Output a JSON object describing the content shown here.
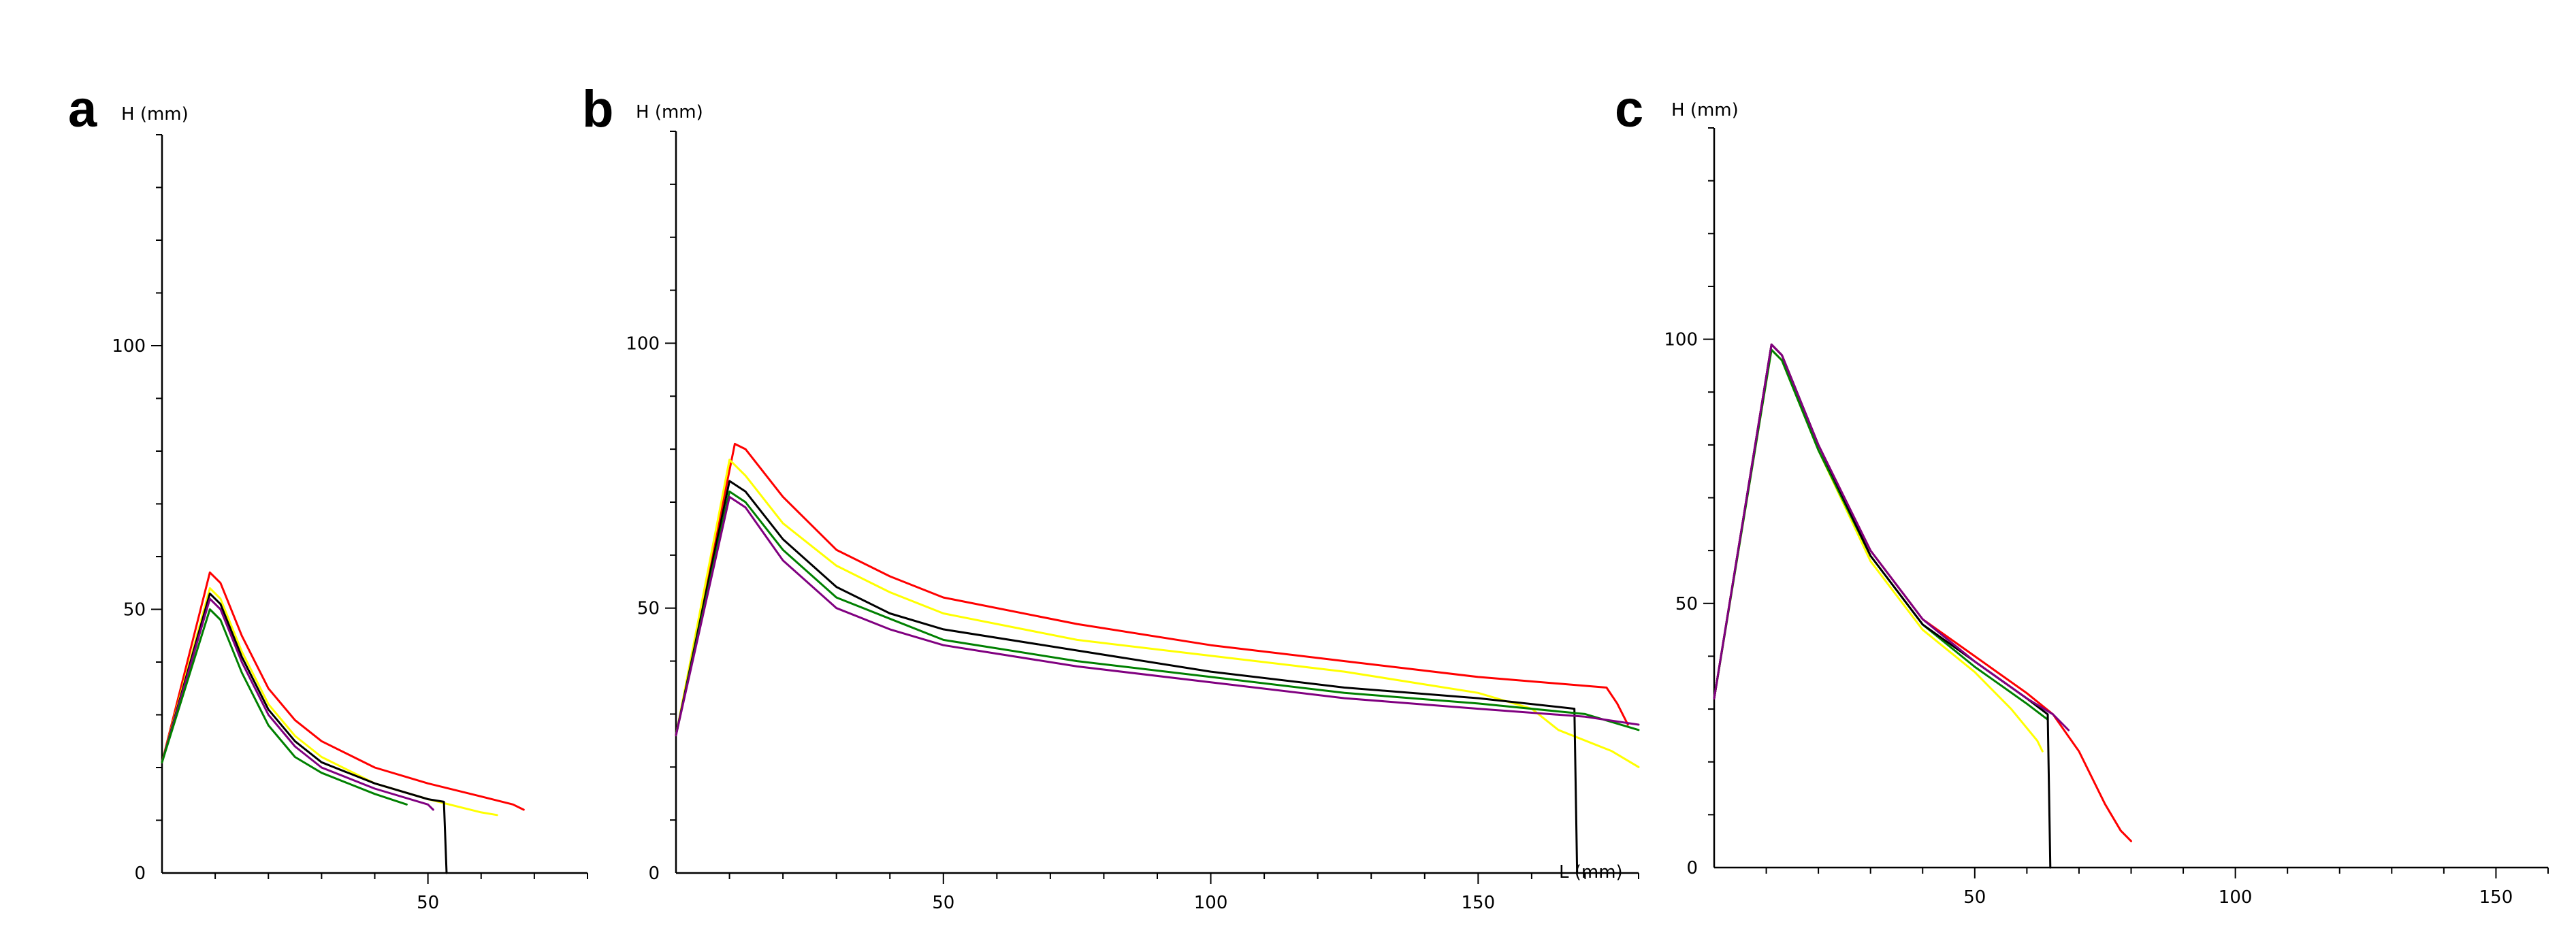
{
  "chart_data": [
    {
      "type": "line",
      "panel_label": "a",
      "ylabel": "H (mm)",
      "xlabel": "",
      "xlim": [
        0,
        80
      ],
      "ylim": [
        0,
        140
      ],
      "x_ticks": [
        50
      ],
      "y_ticks": [
        0,
        50,
        100
      ],
      "x_tick_labels": [
        "50"
      ],
      "y_tick_labels": [
        "0",
        "50",
        "100"
      ],
      "series": [
        {
          "color": "#ff0000",
          "points": [
            [
              0,
              21
            ],
            [
              9,
              57
            ],
            [
              11,
              55
            ],
            [
              15,
              45
            ],
            [
              20,
              35
            ],
            [
              25,
              29
            ],
            [
              30,
              25
            ],
            [
              40,
              20
            ],
            [
              50,
              17
            ],
            [
              60,
              14.5
            ],
            [
              66,
              13
            ],
            [
              68,
              12
            ]
          ]
        },
        {
          "color": "#ffff00",
          "points": [
            [
              0,
              21
            ],
            [
              9,
              54
            ],
            [
              11,
              52
            ],
            [
              15,
              42
            ],
            [
              20,
              32
            ],
            [
              25,
              26
            ],
            [
              30,
              22
            ],
            [
              40,
              17
            ],
            [
              50,
              14
            ],
            [
              60,
              11.5
            ],
            [
              63,
              11
            ]
          ]
        },
        {
          "color": "#000000",
          "points": [
            [
              0,
              21
            ],
            [
              9,
              53
            ],
            [
              11,
              51
            ],
            [
              15,
              41
            ],
            [
              20,
              31
            ],
            [
              25,
              25
            ],
            [
              30,
              21
            ],
            [
              40,
              17
            ],
            [
              50,
              14
            ],
            [
              53,
              13.5
            ],
            [
              53.5,
              0
            ]
          ]
        },
        {
          "color": "#800080",
          "points": [
            [
              0,
              21
            ],
            [
              9,
              52
            ],
            [
              11,
              50
            ],
            [
              15,
              40
            ],
            [
              20,
              30
            ],
            [
              25,
              24
            ],
            [
              30,
              20
            ],
            [
              40,
              16
            ],
            [
              50,
              13
            ],
            [
              51,
              12
            ]
          ]
        },
        {
          "color": "#008000",
          "points": [
            [
              0,
              21
            ],
            [
              9,
              50
            ],
            [
              11,
              48
            ],
            [
              15,
              38
            ],
            [
              20,
              28
            ],
            [
              25,
              22
            ],
            [
              30,
              19
            ],
            [
              40,
              15
            ],
            [
              46,
              13
            ]
          ]
        }
      ]
    },
    {
      "type": "line",
      "panel_label": "b",
      "ylabel": "H (mm)",
      "xlabel": "L (mm)",
      "xlim": [
        0,
        180
      ],
      "ylim": [
        0,
        140
      ],
      "x_ticks": [
        50,
        100,
        150
      ],
      "y_ticks": [
        0,
        50,
        100
      ],
      "x_tick_labels": [
        "50",
        "100",
        "150"
      ],
      "y_tick_labels": [
        "0",
        "50",
        "100"
      ],
      "series": [
        {
          "color": "#ff0000",
          "points": [
            [
              0,
              26
            ],
            [
              11,
              81
            ],
            [
              13,
              80
            ],
            [
              20,
              71
            ],
            [
              30,
              61
            ],
            [
              40,
              56
            ],
            [
              50,
              52
            ],
            [
              75,
              47
            ],
            [
              100,
              43
            ],
            [
              125,
              40
            ],
            [
              150,
              37
            ],
            [
              174,
              35
            ],
            [
              176,
              32
            ],
            [
              178,
              28
            ]
          ]
        },
        {
          "color": "#ffff00",
          "points": [
            [
              0,
              26
            ],
            [
              10,
              78
            ],
            [
              13,
              75
            ],
            [
              20,
              66
            ],
            [
              30,
              58
            ],
            [
              40,
              53
            ],
            [
              50,
              49
            ],
            [
              75,
              44
            ],
            [
              100,
              41
            ],
            [
              125,
              38
            ],
            [
              150,
              34
            ],
            [
              160,
              31
            ],
            [
              165,
              27
            ],
            [
              175,
              23
            ],
            [
              180,
              20
            ]
          ]
        },
        {
          "color": "#000000",
          "points": [
            [
              0,
              26
            ],
            [
              10,
              74
            ],
            [
              13,
              72
            ],
            [
              20,
              63
            ],
            [
              30,
              54
            ],
            [
              40,
              49
            ],
            [
              50,
              46
            ],
            [
              75,
              42
            ],
            [
              100,
              38
            ],
            [
              125,
              35
            ],
            [
              150,
              33
            ],
            [
              168,
              31
            ],
            [
              168.5,
              0
            ]
          ]
        },
        {
          "color": "#008000",
          "points": [
            [
              0,
              26
            ],
            [
              10,
              72
            ],
            [
              13,
              70
            ],
            [
              20,
              61
            ],
            [
              30,
              52
            ],
            [
              40,
              48
            ],
            [
              50,
              44
            ],
            [
              75,
              40
            ],
            [
              100,
              37
            ],
            [
              125,
              34
            ],
            [
              150,
              32
            ],
            [
              170,
              30
            ],
            [
              180,
              27
            ]
          ]
        },
        {
          "color": "#800080",
          "points": [
            [
              0,
              26
            ],
            [
              10,
              71
            ],
            [
              13,
              69
            ],
            [
              20,
              59
            ],
            [
              30,
              50
            ],
            [
              40,
              46
            ],
            [
              50,
              43
            ],
            [
              75,
              39
            ],
            [
              100,
              36
            ],
            [
              125,
              33
            ],
            [
              150,
              31
            ],
            [
              170,
              29.5
            ],
            [
              180,
              28
            ]
          ]
        }
      ]
    },
    {
      "type": "line",
      "panel_label": "c",
      "ylabel": "H (mm)",
      "xlabel": "",
      "xlim": [
        0,
        160
      ],
      "ylim": [
        0,
        140
      ],
      "x_ticks": [
        50,
        100,
        150
      ],
      "y_ticks": [
        0,
        50,
        100
      ],
      "x_tick_labels": [
        "50",
        "100",
        "150"
      ],
      "y_tick_labels": [
        "0",
        "50",
        "100"
      ],
      "series": [
        {
          "color": "#ff0000",
          "points": [
            [
              0,
              32
            ],
            [
              11,
              99
            ],
            [
              13,
              97
            ],
            [
              20,
              80
            ],
            [
              30,
              60
            ],
            [
              40,
              47
            ],
            [
              50,
              40
            ],
            [
              60,
              33
            ],
            [
              65,
              29
            ],
            [
              70,
              22
            ],
            [
              75,
              12
            ],
            [
              78,
              7
            ],
            [
              80,
              5
            ]
          ]
        },
        {
          "color": "#ffff00",
          "points": [
            [
              0,
              32
            ],
            [
              11,
              98
            ],
            [
              13,
              96
            ],
            [
              20,
              79
            ],
            [
              30,
              58
            ],
            [
              40,
              45
            ],
            [
              50,
              37
            ],
            [
              57,
              30
            ],
            [
              62,
              24
            ],
            [
              63,
              22
            ]
          ]
        },
        {
          "color": "#008000",
          "points": [
            [
              0,
              32
            ],
            [
              11,
              98
            ],
            [
              13,
              96
            ],
            [
              20,
              79
            ],
            [
              30,
              59
            ],
            [
              40,
              46
            ],
            [
              50,
              38
            ],
            [
              60,
              31
            ],
            [
              64,
              28
            ]
          ]
        },
        {
          "color": "#000000",
          "points": [
            [
              0,
              32
            ],
            [
              11,
              99
            ],
            [
              13,
              97
            ],
            [
              20,
              80
            ],
            [
              30,
              59
            ],
            [
              40,
              46
            ],
            [
              50,
              39
            ],
            [
              60,
              32
            ],
            [
              64,
              29
            ],
            [
              64.5,
              0
            ]
          ]
        },
        {
          "color": "#800080",
          "points": [
            [
              0,
              32
            ],
            [
              11,
              99
            ],
            [
              13,
              97
            ],
            [
              20,
              80
            ],
            [
              30,
              60
            ],
            [
              40,
              47
            ],
            [
              50,
              39
            ],
            [
              60,
              32
            ],
            [
              65,
              29
            ],
            [
              68,
              26
            ]
          ]
        }
      ]
    }
  ]
}
